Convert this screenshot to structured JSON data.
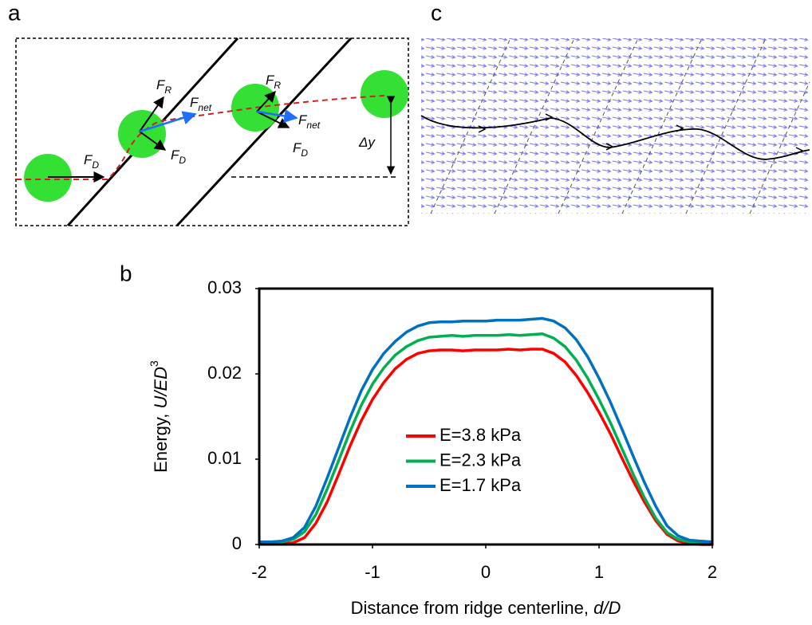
{
  "panel_labels": {
    "a": "a",
    "b": "b",
    "c": "c"
  },
  "diagram_a": {
    "labels": [
      {
        "main": "F",
        "sub": "D"
      },
      {
        "main": "F",
        "sub": "R"
      },
      {
        "main": "F",
        "sub": "net"
      },
      {
        "main": "F",
        "sub": "D"
      },
      {
        "main": "F",
        "sub": "R"
      },
      {
        "main": "F",
        "sub": "net"
      },
      {
        "main": "F",
        "sub": "D"
      },
      {
        "main": "Δy"
      }
    ]
  },
  "chart_data": {
    "type": "line",
    "ylabel": {
      "text": "Energy, ",
      "var": "U/ED",
      "sup": "3"
    },
    "xlabel": {
      "text": "Distance from ridge centerline, ",
      "var": "d/D"
    },
    "x": [
      -2,
      -1.9,
      -1.8,
      -1.7,
      -1.6,
      -1.5,
      -1.4,
      -1.3,
      -1.2,
      -1.1,
      -1,
      -0.9,
      -0.8,
      -0.7,
      -0.6,
      -0.5,
      -0.4,
      -0.3,
      -0.2,
      -0.1,
      0,
      0.1,
      0.2,
      0.3,
      0.4,
      0.5,
      0.6,
      0.7,
      0.8,
      0.9,
      1,
      1.1,
      1.2,
      1.3,
      1.4,
      1.5,
      1.6,
      1.7,
      1.8,
      1.9,
      2
    ],
    "series": [
      {
        "name": "E=3.8 kPa",
        "color": "#ff0000",
        "values": [
          0.0001,
          0.0001,
          0.0001,
          0.0002,
          0.0008,
          0.0025,
          0.005,
          0.0082,
          0.0115,
          0.0145,
          0.017,
          0.019,
          0.0206,
          0.0217,
          0.0224,
          0.0227,
          0.0228,
          0.0228,
          0.0227,
          0.0228,
          0.0228,
          0.0228,
          0.0229,
          0.0228,
          0.0229,
          0.0229,
          0.0224,
          0.0214,
          0.0198,
          0.0178,
          0.0155,
          0.013,
          0.0102,
          0.0075,
          0.005,
          0.0028,
          0.0012,
          0.0004,
          0.0001,
          0,
          0
        ]
      },
      {
        "name": "E=2.3 kPa",
        "color": "#00b050",
        "values": [
          0.0002,
          0.0002,
          0.0003,
          0.0006,
          0.0015,
          0.0035,
          0.0065,
          0.0098,
          0.0132,
          0.0163,
          0.0188,
          0.0207,
          0.0222,
          0.0232,
          0.0239,
          0.0243,
          0.0244,
          0.0245,
          0.0244,
          0.0245,
          0.0245,
          0.0245,
          0.0246,
          0.0245,
          0.0246,
          0.0247,
          0.0242,
          0.0232,
          0.0216,
          0.0195,
          0.017,
          0.0143,
          0.0113,
          0.0083,
          0.0055,
          0.0031,
          0.0014,
          0.0006,
          0.0003,
          0.0002,
          0.0001
        ]
      },
      {
        "name": "E=1.7 kPa",
        "color": "#0070c0",
        "values": [
          0.0003,
          0.0003,
          0.0004,
          0.0008,
          0.002,
          0.0045,
          0.0078,
          0.0113,
          0.0148,
          0.018,
          0.0205,
          0.0224,
          0.0238,
          0.0249,
          0.0256,
          0.026,
          0.0261,
          0.0261,
          0.0262,
          0.0262,
          0.0262,
          0.0263,
          0.0263,
          0.0263,
          0.0264,
          0.0265,
          0.0262,
          0.0254,
          0.024,
          0.022,
          0.0195,
          0.0167,
          0.0136,
          0.0104,
          0.0073,
          0.0045,
          0.0022,
          0.001,
          0.0005,
          0.0004,
          0.0003
        ]
      }
    ],
    "xlim": [
      -2,
      2
    ],
    "xticks": [
      -2,
      -1,
      0,
      1,
      2
    ],
    "ylim": [
      0,
      0.03
    ],
    "yticks": [
      0,
      0.01,
      0.02,
      0.03
    ],
    "grid": false,
    "legend": "lower center"
  }
}
